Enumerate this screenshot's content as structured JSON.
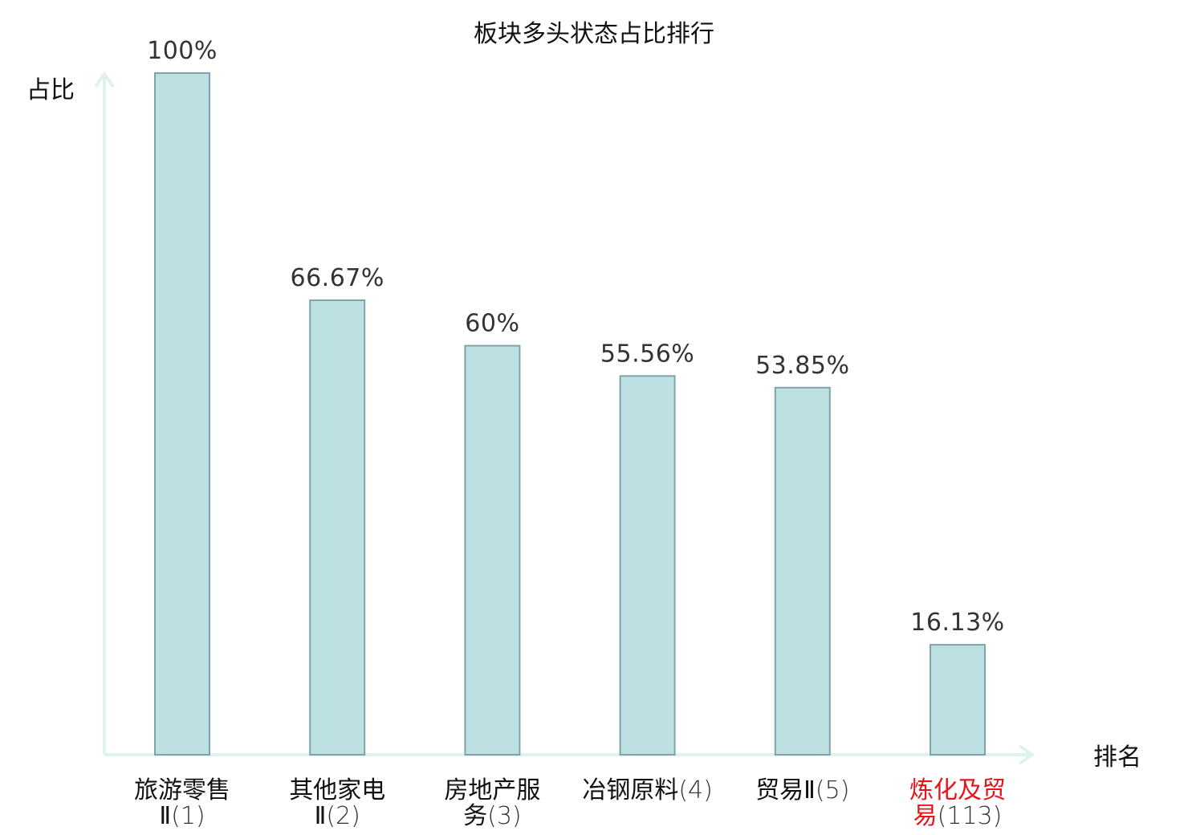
{
  "chart_data": {
    "type": "bar",
    "title": "板块多头状态占比排行",
    "ylabel": "占比",
    "xlabel": "排名",
    "ylim": [
      0,
      100
    ],
    "grid": false,
    "categories": [
      {
        "name_lines": [
          "旅游零售",
          "Ⅱ"
        ],
        "rank": "(1)",
        "highlight": false
      },
      {
        "name_lines": [
          "其他家电",
          "Ⅱ"
        ],
        "rank": "(2)",
        "highlight": false
      },
      {
        "name_lines": [
          "房地产服",
          "务"
        ],
        "rank": "(3)",
        "highlight": false
      },
      {
        "name_lines": [
          "冶钢原料"
        ],
        "rank": "(4)",
        "highlight": false
      },
      {
        "name_lines": [
          "贸易Ⅱ"
        ],
        "rank": "(5)",
        "highlight": false
      },
      {
        "name_lines": [
          "炼化及贸",
          "易"
        ],
        "rank": "(113)",
        "highlight": true
      }
    ],
    "values": [
      100,
      66.67,
      60,
      55.56,
      53.85,
      16.13
    ],
    "value_labels": [
      "100%",
      "66.67%",
      "60%",
      "55.56%",
      "53.85%",
      "16.13%"
    ]
  },
  "colors": {
    "bar_fill": "#bde0e3",
    "bar_stroke": "#7fa3a8",
    "axis": "#dff2ef",
    "highlight_text": "#e8141b",
    "text": "#111111"
  }
}
